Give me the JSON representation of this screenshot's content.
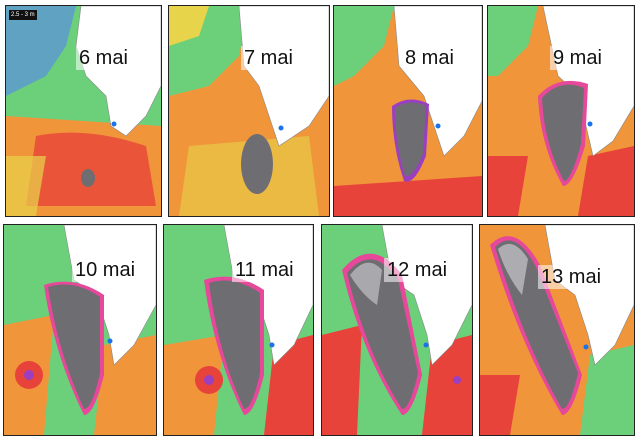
{
  "panels": [
    {
      "date_label": "6 mai"
    },
    {
      "date_label": "7 mai"
    },
    {
      "date_label": "8 mai"
    },
    {
      "date_label": "9 mai"
    },
    {
      "date_label": "10 mai"
    },
    {
      "date_label": "11 mai"
    },
    {
      "date_label": "12 mai"
    },
    {
      "date_label": "13 mai"
    }
  ],
  "first_panel_badge": "2.5 - 3 m",
  "colors": {
    "grey_zone": "#6e6e72",
    "grey_zone_edge": "#b8b8bc",
    "purple_band": "#9a3fc0",
    "pink_band": "#e6489a",
    "land": "#ffffff",
    "sea_blue": "#5a8fe0",
    "sea_green": "#6cd07a",
    "sea_yellow": "#e8d44a",
    "sea_orange": "#f0953a",
    "sea_red": "#e8433a",
    "marker": "#1a73e8"
  }
}
